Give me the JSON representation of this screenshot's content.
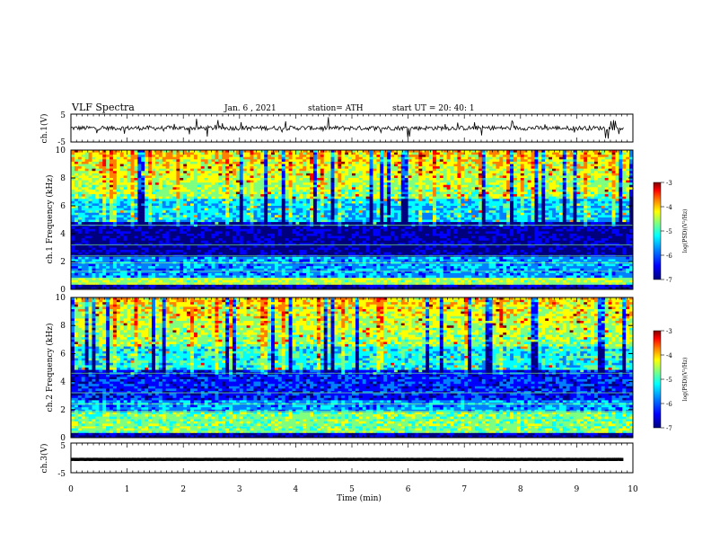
{
  "header": {
    "title": "VLF Spectra",
    "date": "Jan. 6 , 2021",
    "station": "station= ATH",
    "start": "start UT = 20: 40: 1"
  },
  "chart_data": [
    {
      "type": "line",
      "panel": "ch1-waveform",
      "ylabel": "ch.1(V)",
      "ylim": [
        -5,
        5
      ],
      "yticks": [
        "5",
        "-5"
      ],
      "xlim": [
        0,
        10
      ],
      "baseline_value": 0,
      "color": "#000000"
    },
    {
      "type": "heatmap",
      "panel": "ch1-spectrogram",
      "ylabel": "ch.1 Frequency (kHz)",
      "ylim": [
        0,
        10
      ],
      "yticks": [
        "0",
        "2",
        "4",
        "6",
        "8",
        "10"
      ],
      "xlim": [
        0,
        10
      ],
      "colorbar": {
        "label": "log(PSD)(V²/Hz)",
        "range": [
          -7,
          -3
        ],
        "ticks": [
          "-3",
          "-4",
          "-5",
          "-6",
          "-7"
        ]
      }
    },
    {
      "type": "heatmap",
      "panel": "ch2-spectrogram",
      "ylabel": "ch.2 Frequency (kHz)",
      "ylim": [
        0,
        10
      ],
      "yticks": [
        "0",
        "2",
        "4",
        "6",
        "8",
        "10"
      ],
      "xlim": [
        0,
        10
      ],
      "colorbar": {
        "label": "log(PSD)(V²/Hz)",
        "range": [
          -7,
          -3
        ],
        "ticks": [
          "-3",
          "-4",
          "-5",
          "-6",
          "-7"
        ]
      }
    },
    {
      "type": "line",
      "panel": "ch3-waveform",
      "ylabel": "ch.3(V)",
      "ylim": [
        -5,
        5
      ],
      "yticks": [
        "5",
        "-5"
      ],
      "xlim": [
        0,
        10
      ],
      "baseline_value": -0.5,
      "color": "#000000"
    }
  ],
  "xaxis": {
    "label": "Time (min)",
    "ticks": [
      "0",
      "1",
      "2",
      "3",
      "4",
      "5",
      "6",
      "7",
      "8",
      "9",
      "10"
    ]
  },
  "colormap": [
    "#00007f",
    "#0000ff",
    "#007fff",
    "#00ffff",
    "#7fff7f",
    "#ffff00",
    "#ff7f00",
    "#ff0000",
    "#7f0000"
  ]
}
